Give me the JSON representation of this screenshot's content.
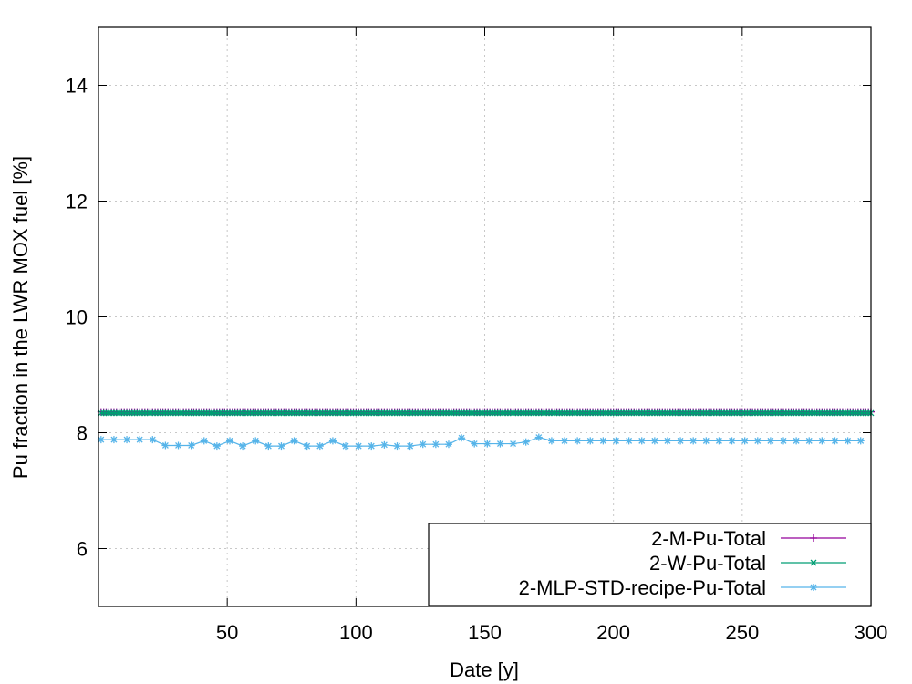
{
  "chart_data": {
    "type": "line",
    "title": "",
    "xlabel": "Date [y]",
    "ylabel": "Pu fraction in the LWR MOX fuel [%]",
    "xlim": [
      0,
      300
    ],
    "ylim": [
      5,
      15
    ],
    "xticks": [
      50,
      100,
      150,
      200,
      250,
      300
    ],
    "yticks": [
      6,
      8,
      10,
      12,
      14
    ],
    "grid": true,
    "legend_position": "bottom-right",
    "series": [
      {
        "name": "2-M-Pu-Total",
        "color": "#94009a",
        "marker": "plus",
        "x_start": 1,
        "x_step": 1,
        "count": 300,
        "constant_value": 8.36
      },
      {
        "name": "2-W-Pu-Total",
        "color": "#009e73",
        "marker": "cross",
        "x_start": 1,
        "x_step": 1,
        "count": 300,
        "constant_value": 8.34
      },
      {
        "name": "2-MLP-STD-recipe-Pu-Total",
        "color": "#56b4e9",
        "marker": "star",
        "x": [
          1,
          6,
          11,
          16,
          21,
          26,
          31,
          36,
          41,
          46,
          51,
          56,
          61,
          66,
          71,
          76,
          81,
          86,
          91,
          96,
          101,
          106,
          111,
          116,
          121,
          126,
          131,
          136,
          141,
          146,
          151,
          156,
          161,
          166,
          171,
          176,
          181,
          186,
          191,
          196,
          201,
          206,
          211,
          216,
          221,
          226,
          231,
          236,
          241,
          246,
          251,
          256,
          261,
          266,
          271,
          276,
          281,
          286,
          291,
          296
        ],
        "values": [
          7.88,
          7.88,
          7.88,
          7.88,
          7.88,
          7.78,
          7.78,
          7.78,
          7.86,
          7.77,
          7.86,
          7.77,
          7.86,
          7.77,
          7.77,
          7.86,
          7.77,
          7.77,
          7.86,
          7.77,
          7.77,
          7.77,
          7.79,
          7.77,
          7.77,
          7.8,
          7.8,
          7.8,
          7.91,
          7.81,
          7.81,
          7.81,
          7.81,
          7.84,
          7.92,
          7.86,
          7.86,
          7.86,
          7.86,
          7.86,
          7.86,
          7.86,
          7.86,
          7.86,
          7.86,
          7.86,
          7.86,
          7.86,
          7.86,
          7.86,
          7.86,
          7.86,
          7.86,
          7.86,
          7.86,
          7.86,
          7.86,
          7.86,
          7.86,
          7.86
        ]
      }
    ]
  }
}
